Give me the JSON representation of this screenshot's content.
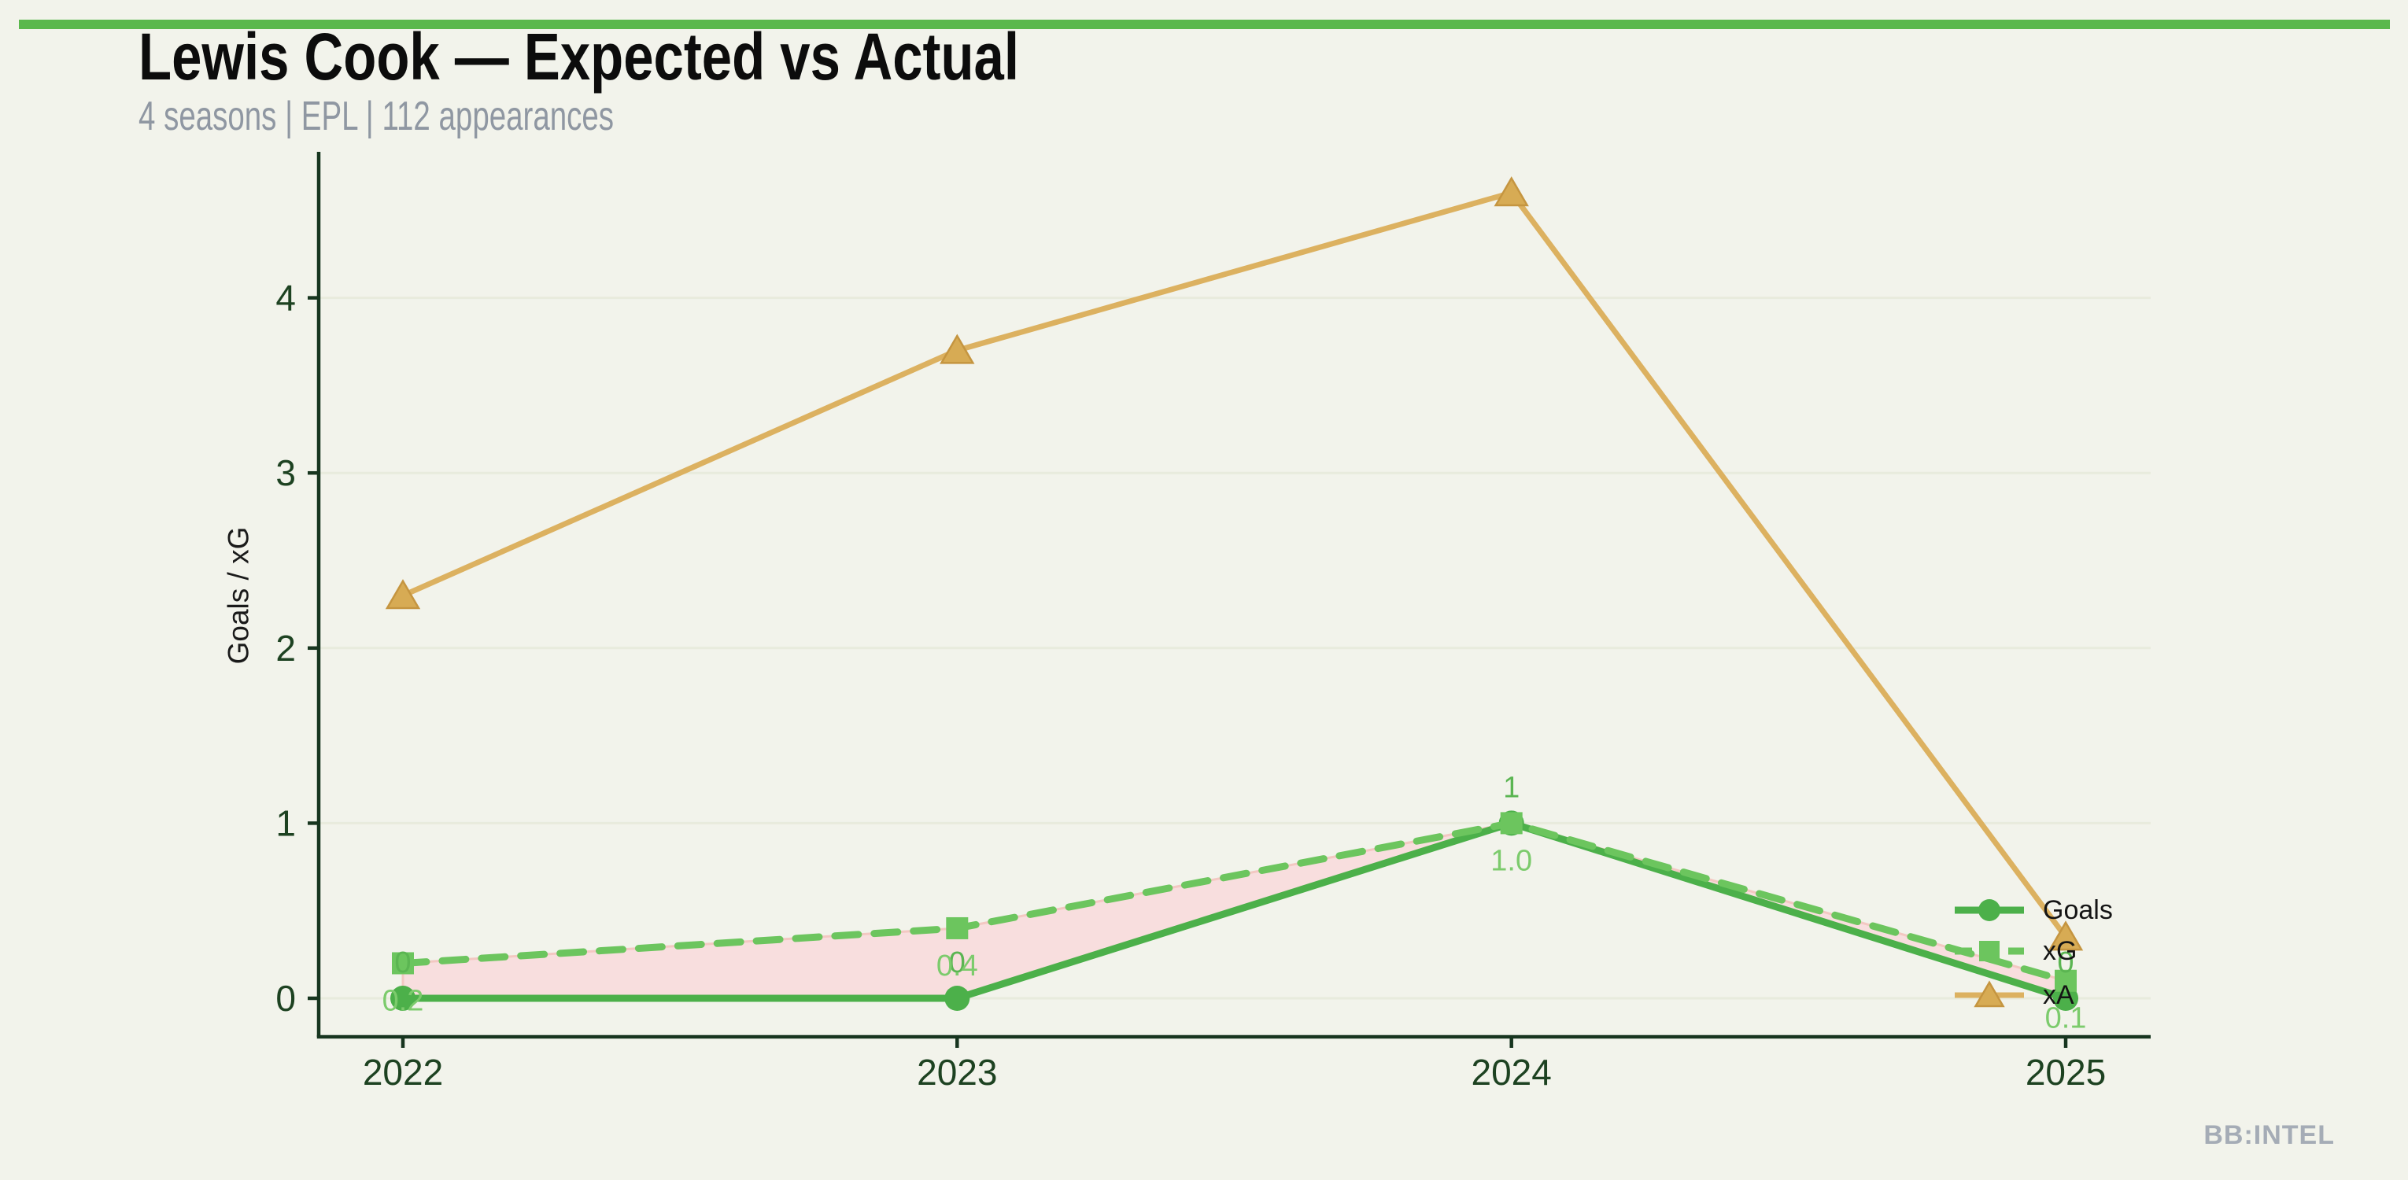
{
  "header": {
    "title": "Lewis Cook — Expected vs Actual",
    "subtitle": "4 seasons | EPL | 112 appearances"
  },
  "footer": {
    "watermark": "BB:INTEL"
  },
  "colors": {
    "background": "#f2f3eb",
    "accent_bar": "#5bb84d",
    "title": "#0c0c0c",
    "subtitle": "#8f97a2",
    "axis": "#17351f",
    "tick_label": "#1d4221",
    "gridline": "#e8ebdd",
    "watermark": "#a5acb6",
    "legend_text": "#141414",
    "band_fill": "#f8dede",
    "band_edge": "#f3c8c2"
  },
  "chart_data": {
    "type": "line",
    "title": "Lewis Cook — Expected vs Actual",
    "subtitle": "4 seasons | EPL | 112 appearances",
    "categories": [
      "2022",
      "2023",
      "2024",
      "2025"
    ],
    "xlabel": "",
    "ylabel": "Goals / xG",
    "yticks": [
      0,
      1,
      2,
      3,
      4
    ],
    "ylim": [
      -0.22,
      4.83
    ],
    "grid": true,
    "legend_position": "right-inside",
    "series": [
      {
        "name": "Goals",
        "values": [
          0,
          0,
          1,
          0
        ],
        "point_labels": [
          "0",
          "0",
          "1",
          "0"
        ],
        "label_side": "above",
        "color": "#4cb04a",
        "label_color": "#5bb552",
        "marker": "circle",
        "line_style": "solid"
      },
      {
        "name": "xG",
        "values": [
          0.2,
          0.4,
          1.0,
          0.1
        ],
        "point_labels": [
          "0.2",
          "0.4",
          "1.0",
          "0.1"
        ],
        "label_side": "below",
        "color": "#6cc55e",
        "label_color": "#7ccb6c",
        "marker": "square",
        "line_style": "dashed"
      },
      {
        "name": "xA",
        "values": [
          2.3,
          3.7,
          4.6,
          0.35
        ],
        "point_labels": null,
        "label_side": null,
        "color": "#dcb160",
        "marker_fill": "#d7ab54",
        "marker_edge": "#c59540",
        "marker": "triangle",
        "line_style": "solid"
      }
    ],
    "band": {
      "upper_series": "xG",
      "lower_series": "Goals",
      "fill": "#f8dede",
      "edge": "#f3c8c2"
    }
  }
}
